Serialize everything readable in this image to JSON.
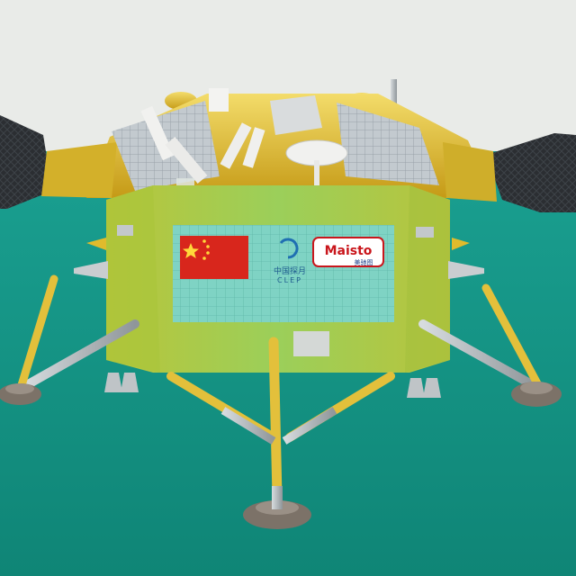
{
  "scene": {
    "subject": "lunar-lander-model",
    "colors": {
      "backdrop": "#e9ebe8",
      "table": "#138f80",
      "gold": "#d8b524",
      "green_panel": "#8fc24a",
      "solar": "#2c2f33",
      "solar_light": "#b8bfc4",
      "leg_gold": "#e3c03b",
      "leg_silver": "#b9bfc3",
      "foot": "#7c7268",
      "flag_red": "#d8261c",
      "flag_star": "#ffd83a",
      "plate": "#7fd3c4"
    }
  },
  "plate": {
    "program_cn": "中国探月",
    "program_en": "CLEP",
    "brand": "Maisto",
    "brand_cn": "美驰图"
  }
}
